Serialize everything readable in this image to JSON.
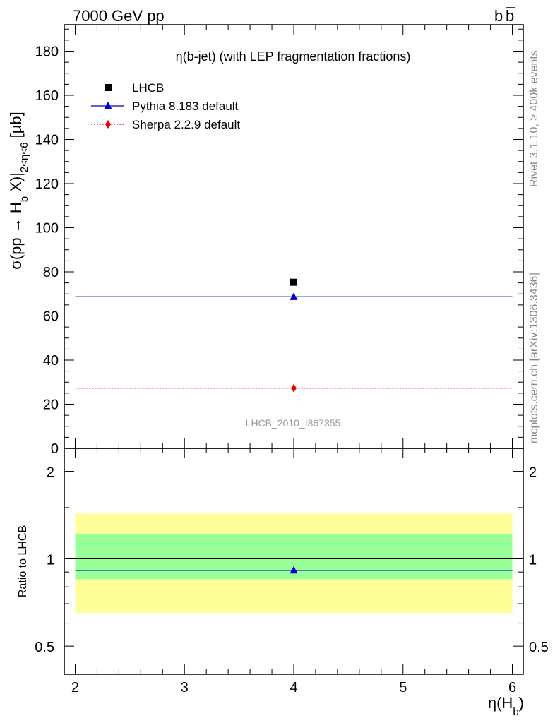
{
  "header": {
    "energy_label": "7000 GeV pp",
    "process_label_main": "b",
    "process_label_bar": "b"
  },
  "side_labels": {
    "rivet": "Rivet 3.1.10, ≥ 400k events",
    "source": "mcplots.cern.ch [arXiv:1306.3436]"
  },
  "chart_data": [
    {
      "type": "scatter",
      "title": "η(b-jet) (with LEP fragmentation fractions)",
      "watermark": "LHCB_2010_I867355",
      "ylabel": "σ(pp → H_b X)|_{2<η<6} [μb]",
      "ylabel_parts": {
        "main": "σ(pp → H",
        "sub1": "b",
        "mid": " X)|",
        "sub2": "2<η<6",
        "end": " [μb]"
      },
      "xlim": [
        1.9,
        6.1
      ],
      "ylim": [
        0,
        192
      ],
      "yticks": [
        0,
        20,
        40,
        60,
        80,
        100,
        120,
        140,
        160,
        180
      ],
      "legend_position": "top-left",
      "series": [
        {
          "name": "LHCB",
          "marker": "square",
          "color": "#000000",
          "points": [
            {
              "x": 4,
              "y": 75.3
            }
          ]
        },
        {
          "name": "Pythia 8.183 default",
          "marker": "triangle",
          "color": "#0000cc",
          "line": "solid",
          "xrange": [
            2,
            6
          ],
          "points": [
            {
              "x": 4,
              "y": 68.7
            }
          ]
        },
        {
          "name": "Sherpa 2.2.9 default",
          "marker": "diamond",
          "color": "#ee0000",
          "line": "dotted",
          "xrange": [
            2,
            6
          ],
          "points": [
            {
              "x": 4,
              "y": 27.3
            }
          ]
        }
      ]
    },
    {
      "type": "scatter",
      "ylabel": "Ratio to LHCB",
      "xlabel": "η(H_b)",
      "xlabel_parts": {
        "main": "η(H",
        "sub": "b",
        "end": ")"
      },
      "xlim": [
        1.9,
        6.1
      ],
      "ylim": [
        0.4,
        2.4
      ],
      "log_y": true,
      "xticks": [
        2,
        3,
        4,
        5,
        6
      ],
      "yticks": [
        0.5,
        1,
        2
      ],
      "yticklabels": [
        "0.5",
        "1",
        "2"
      ],
      "bands": [
        {
          "kind": "outer",
          "color": "#ffff99",
          "range": [
            0.65,
            1.43
          ],
          "xrange": [
            2,
            6
          ]
        },
        {
          "kind": "inner",
          "color": "#99ff99",
          "range": [
            0.85,
            1.22
          ],
          "xrange": [
            2,
            6
          ]
        }
      ],
      "reference_line": 1,
      "series": [
        {
          "name": "Pythia 8.183 default",
          "marker": "triangle",
          "color": "#0000cc",
          "line": "solid",
          "xrange": [
            2,
            6
          ],
          "points": [
            {
              "x": 4,
              "y": 0.912
            }
          ]
        }
      ]
    }
  ]
}
